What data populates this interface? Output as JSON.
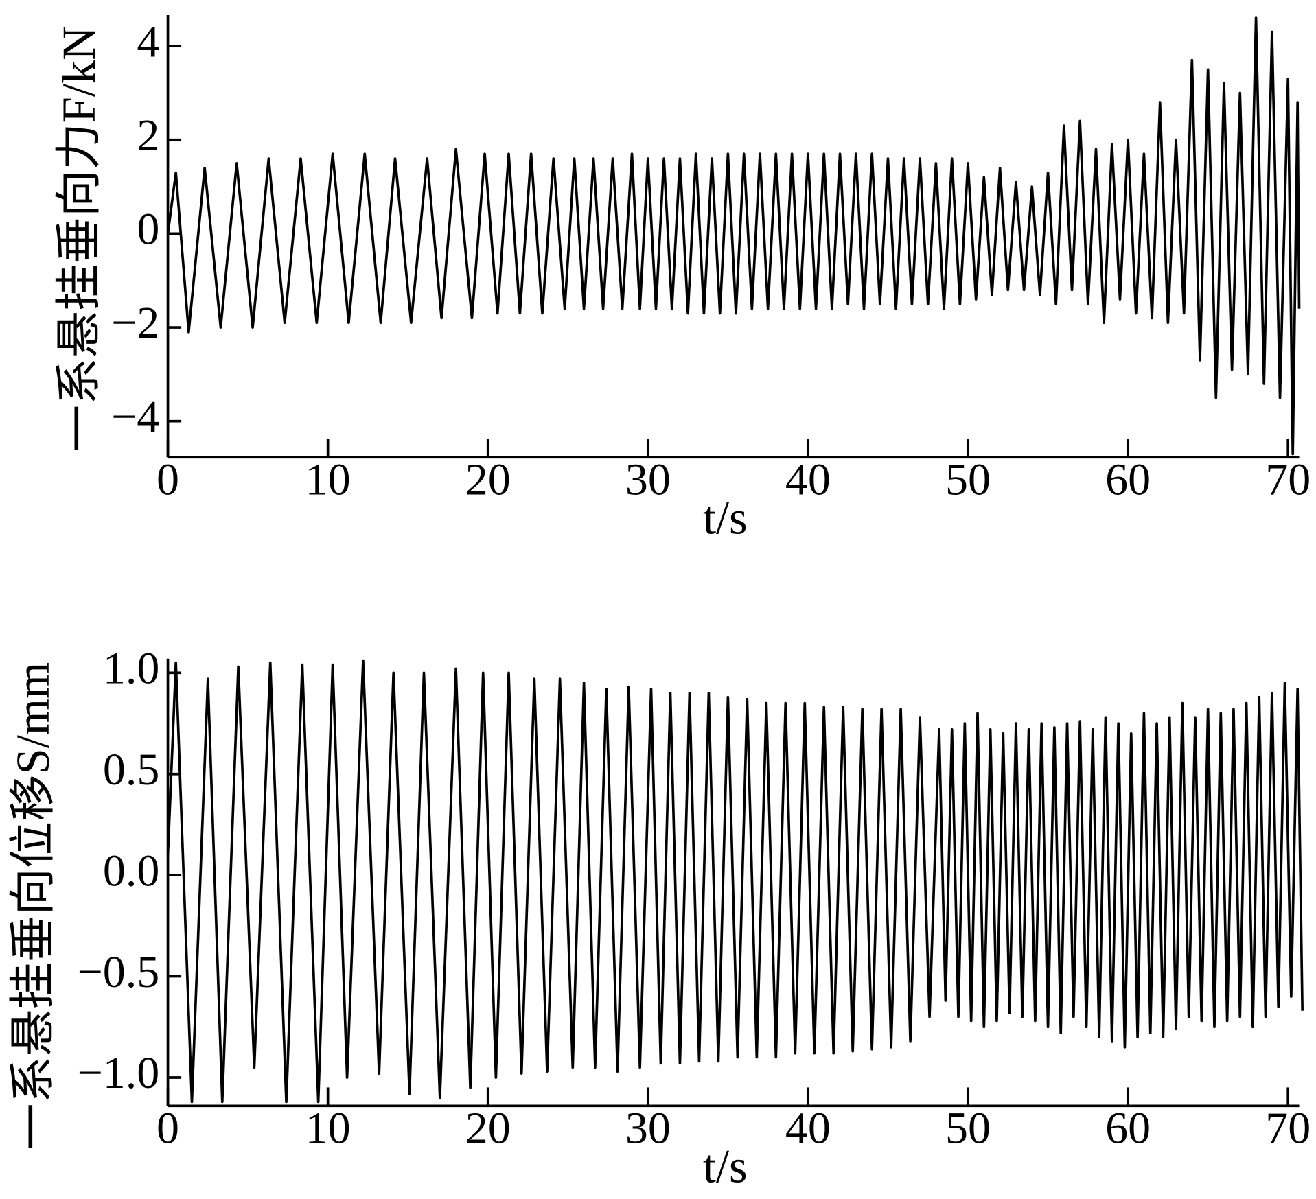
{
  "chart_data": [
    {
      "type": "line",
      "ylabel": "一系悬挂垂向力F/kN",
      "xlabel": "t/s",
      "color": "#000000",
      "xlim": [
        0,
        70.7
      ],
      "xticks": [
        0,
        10,
        20,
        30,
        40,
        50,
        60,
        70
      ],
      "ylim": [
        -4.77,
        4.66
      ],
      "yticks": [
        {
          "value": -4,
          "label": "−4"
        },
        {
          "value": -2,
          "label": "−2"
        },
        0,
        2,
        4
      ],
      "x": [
        0,
        0.5,
        1.3,
        2.3,
        3.3,
        4.3,
        5.3,
        6.3,
        7.3,
        8.3,
        9.3,
        10.3,
        11.3,
        12.3,
        13.3,
        14.2,
        15.2,
        16.2,
        17.1,
        18.0,
        19.0,
        19.8,
        20.6,
        21.3,
        22.0,
        22.7,
        23.4,
        24.1,
        24.8,
        25.4,
        26.0,
        26.6,
        27.2,
        27.8,
        28.4,
        29.0,
        29.5,
        30.0,
        30.5,
        31.0,
        31.5,
        32.0,
        32.5,
        33.0,
        33.5,
        34.0,
        34.5,
        35.0,
        35.5,
        36.0,
        36.5,
        37.0,
        37.5,
        38.0,
        38.5,
        39.0,
        39.5,
        40.0,
        40.5,
        41.0,
        41.5,
        42,
        42.5,
        43,
        43.5,
        44,
        44.5,
        45,
        45.5,
        46,
        46.5,
        47,
        47.5,
        48,
        48.5,
        49,
        49.5,
        50,
        50.5,
        51,
        51.5,
        52,
        52.5,
        53,
        53.5,
        54,
        54.5,
        55,
        55.5,
        56,
        56.5,
        57,
        57.5,
        58,
        58.5,
        59,
        59.5,
        60,
        60.5,
        61,
        61.5,
        62,
        62.5,
        63,
        63.5,
        64,
        64.5,
        65,
        65.5,
        66,
        66.5,
        67,
        67.5,
        68,
        68.5,
        69,
        69.5,
        70,
        70.3,
        70.6,
        70.7
      ],
      "values": [
        0,
        1.3,
        -2.1,
        1.4,
        -2.0,
        1.5,
        -2.0,
        1.6,
        -1.9,
        1.6,
        -1.9,
        1.7,
        -1.9,
        1.7,
        -1.9,
        1.6,
        -1.9,
        1.6,
        -1.8,
        1.8,
        -1.8,
        1.7,
        -1.7,
        1.7,
        -1.7,
        1.7,
        -1.7,
        1.6,
        -1.6,
        1.6,
        -1.6,
        1.6,
        -1.6,
        1.6,
        -1.6,
        1.7,
        -1.6,
        1.6,
        -1.6,
        1.6,
        -1.6,
        1.6,
        -1.7,
        1.7,
        -1.7,
        1.6,
        -1.7,
        1.7,
        -1.7,
        1.7,
        -1.6,
        1.7,
        -1.6,
        1.7,
        -1.6,
        1.7,
        -1.6,
        1.7,
        -1.6,
        1.7,
        -1.6,
        1.7,
        -1.5,
        1.7,
        -1.6,
        1.7,
        -1.5,
        1.6,
        -1.6,
        1.6,
        -1.5,
        1.6,
        -1.5,
        1.5,
        -1.6,
        1.6,
        -1.5,
        1.5,
        -1.4,
        1.2,
        -1.3,
        1.4,
        -1.2,
        1.1,
        -1.2,
        1.0,
        -1.3,
        1.3,
        -1.5,
        2.3,
        -1.2,
        2.4,
        -1.5,
        1.8,
        -1.9,
        1.9,
        -1.4,
        2.0,
        -1.7,
        1.7,
        -1.8,
        2.8,
        -1.9,
        2.0,
        -1.7,
        3.7,
        -2.7,
        3.5,
        -3.5,
        3.2,
        -2.9,
        3.0,
        -3.0,
        4.6,
        -3.2,
        4.3,
        -3.5,
        3.3,
        -4.7,
        2.8,
        -1.6
      ]
    },
    {
      "type": "line",
      "ylabel": "一系悬挂垂向位移S/mm",
      "xlabel": "t/s",
      "color": "#000000",
      "xlim": [
        0,
        70.7
      ],
      "xticks": [
        0,
        10,
        20,
        30,
        40,
        50,
        60,
        70
      ],
      "ylim": [
        -1.14,
        1.07
      ],
      "yticks": [
        {
          "value": -1,
          "label": "−1.0"
        },
        {
          "value": -0.5,
          "label": "−0.5"
        },
        {
          "value": 0,
          "label": "0.0"
        },
        0.5,
        {
          "value": 1,
          "label": "1.0"
        }
      ],
      "x": [
        0,
        0.5,
        1.5,
        2.5,
        3.4,
        4.4,
        5.4,
        6.4,
        7.4,
        8.4,
        9.4,
        10.3,
        11.2,
        12.2,
        13.2,
        14.1,
        15.1,
        16.0,
        17.0,
        18.0,
        18.9,
        19.7,
        20.5,
        21.3,
        22.1,
        22.9,
        23.7,
        24.5,
        25.3,
        26.0,
        26.7,
        27.4,
        28.1,
        28.8,
        29.5,
        30.2,
        30.8,
        31.4,
        32.0,
        32.6,
        33.2,
        33.8,
        34.4,
        35.0,
        35.6,
        36.2,
        36.8,
        37.4,
        38.0,
        38.6,
        39.2,
        39.8,
        40.4,
        41.0,
        41.6,
        42.2,
        42.8,
        43.4,
        44.0,
        44.6,
        45.2,
        45.8,
        46.4,
        47.0,
        47.6,
        48.2,
        48.6,
        49.0,
        49.4,
        49.8,
        50.2,
        50.6,
        51.0,
        51.4,
        51.8,
        52.2,
        52.6,
        53.0,
        53.4,
        53.8,
        54.2,
        54.6,
        55.0,
        55.4,
        55.8,
        56.2,
        56.6,
        57.0,
        57.4,
        57.8,
        58.2,
        58.6,
        59.0,
        59.4,
        59.8,
        60.2,
        60.6,
        61.0,
        61.4,
        61.8,
        62.2,
        62.6,
        63.0,
        63.4,
        63.8,
        64.2,
        64.6,
        65.0,
        65.4,
        65.8,
        66.2,
        66.6,
        67.0,
        67.4,
        67.8,
        68.2,
        68.6,
        69.0,
        69.4,
        69.8,
        70.2,
        70.6,
        70.9
      ],
      "values": [
        0.1,
        1.05,
        -1.12,
        0.97,
        -1.12,
        1.03,
        -0.95,
        1.05,
        -1.12,
        1.04,
        -1.12,
        1.04,
        -1.0,
        1.06,
        -0.98,
        1.0,
        -1.08,
        1.0,
        -1.1,
        1.02,
        -1.05,
        1.0,
        -1.0,
        1.0,
        -0.98,
        0.97,
        -0.97,
        0.97,
        -0.95,
        0.95,
        -0.95,
        0.92,
        -0.97,
        0.93,
        -0.95,
        0.92,
        -0.93,
        0.9,
        -0.93,
        0.9,
        -0.92,
        0.9,
        -0.92,
        0.88,
        -0.9,
        0.87,
        -0.9,
        0.85,
        -0.9,
        0.85,
        -0.88,
        0.85,
        -0.88,
        0.83,
        -0.88,
        0.83,
        -0.87,
        0.82,
        -0.86,
        0.82,
        -0.85,
        0.82,
        -0.82,
        0.78,
        -0.7,
        0.72,
        -0.62,
        0.72,
        -0.7,
        0.75,
        -0.72,
        0.8,
        -0.75,
        0.72,
        -0.72,
        0.7,
        -0.68,
        0.75,
        -0.7,
        0.72,
        -0.72,
        0.75,
        -0.75,
        0.73,
        -0.78,
        0.75,
        -0.7,
        0.76,
        -0.75,
        0.72,
        -0.8,
        0.78,
        -0.82,
        0.75,
        -0.85,
        0.7,
        -0.8,
        0.8,
        -0.78,
        0.75,
        -0.8,
        0.78,
        -0.76,
        0.85,
        -0.7,
        0.78,
        -0.72,
        0.82,
        -0.75,
        0.8,
        -0.72,
        0.82,
        -0.7,
        0.85,
        -0.75,
        0.88,
        -0.7,
        0.9,
        -0.65,
        0.95,
        -0.6,
        0.92,
        -0.67
      ]
    }
  ]
}
